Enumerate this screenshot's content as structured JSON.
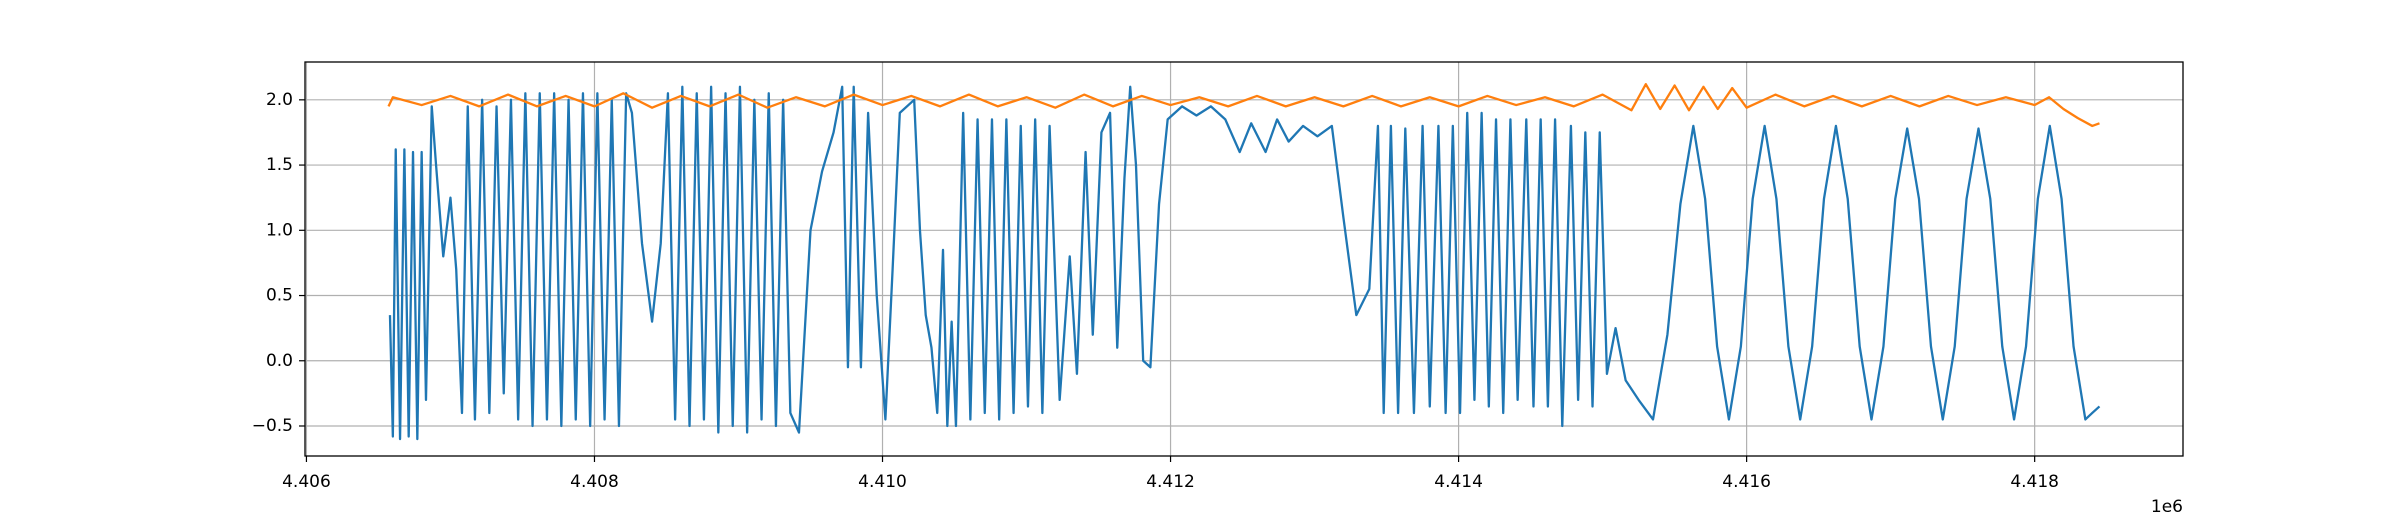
{
  "chart_data": {
    "type": "line",
    "grid": true,
    "xlim": [
      4405990,
      4419030
    ],
    "ylim": [
      -0.73,
      2.29
    ],
    "xticks": [
      {
        "value": 4406000,
        "label": "4.406"
      },
      {
        "value": 4408000,
        "label": "4.408"
      },
      {
        "value": 4410000,
        "label": "4.410"
      },
      {
        "value": 4412000,
        "label": "4.412"
      },
      {
        "value": 4414000,
        "label": "4.414"
      },
      {
        "value": 4416000,
        "label": "4.416"
      },
      {
        "value": 4418000,
        "label": "4.418"
      }
    ],
    "x_offset_label": "1e6",
    "yticks": [
      {
        "value": -0.5,
        "label": "−0.5"
      },
      {
        "value": 0,
        "label": "0.0"
      },
      0.5,
      {
        "value": 1,
        "label": "1.0"
      },
      1.5,
      {
        "value": 2,
        "label": "2.0"
      }
    ],
    "series": [
      {
        "color": "#1f77b4",
        "x": [
          4406580,
          4406600,
          4406620,
          4406650,
          4406680,
          4406710,
          4406740,
          4406770,
          4406800,
          4406830,
          4406870,
          4406900,
          4406950,
          4407000,
          4407040,
          4407080,
          4407120,
          4407170,
          4407220,
          4407270,
          4407320,
          4407370,
          4407420,
          4407470,
          4407520,
          4407570,
          4407620,
          4407670,
          4407720,
          4407770,
          4407820,
          4407870,
          4407920,
          4407970,
          4408020,
          4408070,
          4408120,
          4408170,
          4408220,
          4408260,
          4408330,
          4408400,
          4408460,
          4408510,
          4408560,
          4408610,
          4408660,
          4408710,
          4408760,
          4408810,
          4408860,
          4408910,
          4408960,
          4409010,
          4409060,
          4409110,
          4409160,
          4409210,
          4409260,
          4409310,
          4409360,
          4409420,
          4409500,
          4409580,
          4409660,
          4409720,
          4409760,
          4409800,
          4409850,
          4409900,
          4409960,
          4410020,
          4410070,
          4410120,
          4410220,
          4410260,
          4410300,
          4410340,
          4410380,
          4410420,
          4410450,
          4410480,
          4410510,
          4410560,
          4410610,
          4410660,
          4410710,
          4410760,
          4410810,
          4410860,
          4410910,
          4410960,
          4411010,
          4411060,
          4411110,
          4411160,
          4411230,
          4411300,
          4411350,
          4411410,
          4411460,
          4411520,
          4411580,
          4411630,
          4411680,
          4411720,
          4411760,
          4411810,
          4411860,
          4411920,
          4411980,
          4412080,
          4412180,
          4412280,
          4412380,
          4412480,
          4412560,
          4412660,
          4412740,
          4412820,
          4412920,
          4413020,
          4413120,
          4413200,
          4413290,
          4413380,
          4413440,
          4413480,
          4413530,
          4413580,
          4413630,
          4413690,
          4413750,
          4413800,
          4413860,
          4413910,
          4413960,
          4414010,
          4414060,
          4414110,
          4414160,
          4414210,
          4414260,
          4414310,
          4414360,
          4414410,
          4414470,
          4414520,
          4414570,
          4414620,
          4414670,
          4414720,
          4414780,
          4414830,
          4414880,
          4414930,
          4414980,
          4415030,
          4415090,
          4415160,
          4415250,
          4415350,
          4415450,
          4415540,
          4415630,
          4415712,
          4415795,
          4415877,
          4415960,
          4416042,
          4416125,
          4416207,
          4416290,
          4416372,
          4416455,
          4416537,
          4416620,
          4416702,
          4416785,
          4416867,
          4416950,
          4417032,
          4417115,
          4417197,
          4417280,
          4417362,
          4417445,
          4417527,
          4417610,
          4417692,
          4417775,
          4417857,
          4417940,
          4418022,
          4418105,
          4418187,
          4418270,
          4418352,
          4418400,
          4418450
        ],
        "values": [
          0.35,
          -0.58,
          1.62,
          -0.6,
          1.62,
          -0.58,
          1.6,
          -0.6,
          1.6,
          -0.3,
          1.95,
          1.5,
          0.8,
          1.25,
          0.7,
          -0.4,
          1.95,
          -0.45,
          2.0,
          -0.4,
          1.95,
          -0.25,
          2.0,
          -0.45,
          2.05,
          -0.5,
          2.05,
          -0.45,
          2.05,
          -0.5,
          2.0,
          -0.45,
          2.05,
          -0.5,
          2.05,
          -0.45,
          2.0,
          -0.5,
          2.05,
          1.9,
          0.9,
          0.3,
          0.9,
          2.05,
          -0.45,
          2.1,
          -0.5,
          2.05,
          -0.45,
          2.1,
          -0.55,
          2.05,
          -0.5,
          2.1,
          -0.55,
          2.0,
          -0.45,
          2.05,
          -0.5,
          2.0,
          -0.4,
          -0.55,
          1.0,
          1.45,
          1.75,
          2.1,
          -0.05,
          2.1,
          -0.05,
          1.9,
          0.5,
          -0.45,
          0.7,
          1.9,
          2.0,
          1.0,
          0.35,
          0.1,
          -0.4,
          0.85,
          -0.5,
          0.3,
          -0.5,
          1.9,
          -0.45,
          1.85,
          -0.4,
          1.85,
          -0.45,
          1.85,
          -0.4,
          1.8,
          -0.35,
          1.85,
          -0.4,
          1.8,
          -0.3,
          0.8,
          -0.1,
          1.6,
          0.2,
          1.75,
          1.9,
          0.1,
          1.4,
          2.1,
          1.5,
          0.0,
          -0.05,
          1.2,
          1.85,
          1.95,
          1.88,
          1.95,
          1.85,
          1.6,
          1.82,
          1.6,
          1.85,
          1.68,
          1.8,
          1.72,
          1.8,
          1.1,
          0.35,
          0.55,
          1.8,
          -0.4,
          1.8,
          -0.4,
          1.78,
          -0.4,
          1.8,
          -0.35,
          1.8,
          -0.4,
          1.8,
          -0.4,
          1.9,
          -0.3,
          1.9,
          -0.35,
          1.85,
          -0.4,
          1.85,
          -0.3,
          1.85,
          -0.35,
          1.85,
          -0.35,
          1.85,
          -0.5,
          1.8,
          -0.3,
          1.75,
          -0.35,
          1.75,
          -0.1,
          0.25,
          -0.15,
          -0.3,
          -0.45,
          0.2,
          1.2,
          1.8,
          1.24,
          0.11,
          -0.45,
          0.11,
          1.24,
          1.8,
          1.24,
          0.11,
          -0.45,
          0.11,
          1.24,
          1.8,
          1.24,
          0.11,
          -0.45,
          0.11,
          1.24,
          1.78,
          1.24,
          0.11,
          -0.45,
          0.11,
          1.24,
          1.78,
          1.24,
          0.11,
          -0.45,
          0.11,
          1.24,
          1.8,
          1.24,
          0.11,
          -0.45,
          -0.4,
          -0.35
        ]
      },
      {
        "color": "#ff7f0e",
        "x": [
          4406570,
          4406600,
          4406800,
          4407000,
          4407200,
          4407400,
          4407600,
          4407800,
          4408000,
          4408200,
          4408400,
          4408600,
          4408800,
          4409000,
          4409200,
          4409400,
          4409600,
          4409800,
          4410000,
          4410200,
          4410400,
          4410600,
          4410800,
          4411000,
          4411200,
          4411400,
          4411600,
          4411800,
          4412000,
          4412200,
          4412400,
          4412600,
          4412800,
          4413000,
          4413200,
          4413400,
          4413600,
          4413800,
          4414000,
          4414200,
          4414400,
          4414600,
          4414800,
          4415000,
          4415200,
          4415300,
          4415400,
          4415500,
          4415600,
          4415700,
          4415800,
          4415900,
          4416000,
          4416200,
          4416400,
          4416600,
          4416800,
          4417000,
          4417200,
          4417400,
          4417600,
          4417800,
          4418000,
          4418100,
          4418200,
          4418300,
          4418400,
          4418450
        ],
        "values": [
          1.95,
          2.02,
          1.96,
          2.03,
          1.95,
          2.04,
          1.95,
          2.03,
          1.95,
          2.05,
          1.94,
          2.03,
          1.95,
          2.04,
          1.94,
          2.02,
          1.95,
          2.04,
          1.96,
          2.03,
          1.95,
          2.04,
          1.95,
          2.02,
          1.94,
          2.04,
          1.95,
          2.03,
          1.96,
          2.02,
          1.95,
          2.03,
          1.95,
          2.02,
          1.95,
          2.03,
          1.95,
          2.02,
          1.95,
          2.03,
          1.96,
          2.02,
          1.95,
          2.04,
          1.92,
          2.12,
          1.93,
          2.11,
          1.92,
          2.1,
          1.93,
          2.09,
          1.94,
          2.04,
          1.95,
          2.03,
          1.95,
          2.03,
          1.95,
          2.03,
          1.96,
          2.02,
          1.96,
          2.02,
          1.93,
          1.86,
          1.8,
          1.82
        ]
      }
    ]
  }
}
